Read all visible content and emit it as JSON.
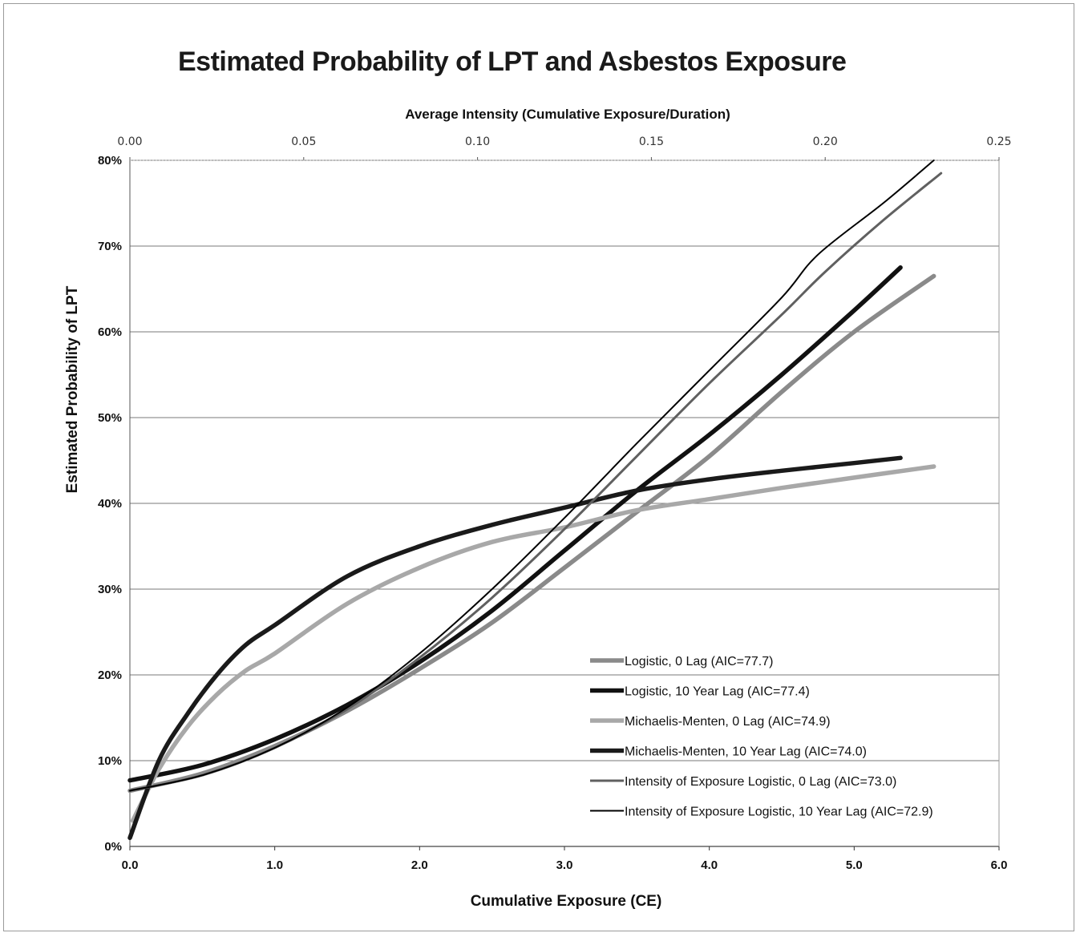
{
  "chart_data": {
    "type": "line",
    "title": "Estimated Probability of LPT and Asbestos Exposure",
    "xlabel": "Cumulative Exposure (CE)",
    "ylabel": "Estimated Probability of LPT",
    "x2label": "Average Intensity (Cumulative Exposure/Duration)",
    "xlim": [
      0,
      6
    ],
    "ylim": [
      0,
      0.8
    ],
    "x2lim": [
      0,
      0.25
    ],
    "x_ticks": [
      "0.0",
      "1.0",
      "2.0",
      "3.0",
      "4.0",
      "5.0",
      "6.0"
    ],
    "y_ticks": [
      "0%",
      "10%",
      "20%",
      "30%",
      "40%",
      "50%",
      "60%",
      "70%",
      "80%"
    ],
    "x2_ticks": [
      "0.00",
      "0.05",
      "0.10",
      "0.15",
      "0.20",
      "0.25"
    ],
    "grid": "horizontal",
    "legend_position": "bottom-right",
    "series": [
      {
        "name": "Logistic, 0 Lag (AIC=77.7)",
        "color": "#8a8a8a",
        "style": "thick-gray",
        "x": [
          0.0,
          0.5,
          1.0,
          1.5,
          2.0,
          2.5,
          3.0,
          3.5,
          4.0,
          4.5,
          5.0,
          5.55
        ],
        "y": [
          0.065,
          0.085,
          0.117,
          0.158,
          0.207,
          0.261,
          0.325,
          0.39,
          0.455,
          0.53,
          0.6,
          0.665
        ]
      },
      {
        "name": "Logistic, 10 Year Lag (AIC=77.4)",
        "color": "#111111",
        "style": "thick-black",
        "x": [
          0.0,
          0.5,
          1.0,
          1.5,
          2.0,
          2.5,
          3.0,
          3.5,
          4.0,
          4.5,
          5.0,
          5.32
        ],
        "y": [
          0.077,
          0.095,
          0.125,
          0.165,
          0.215,
          0.275,
          0.345,
          0.415,
          0.48,
          0.55,
          0.625,
          0.675
        ]
      },
      {
        "name": "Michaelis-Menten, 0 Lag (AIC=74.9)",
        "color": "#a8a8a8",
        "style": "thick-lightgray",
        "x": [
          0.02,
          0.2,
          0.4,
          0.6,
          0.8,
          1.0,
          1.5,
          2.0,
          2.5,
          3.0,
          3.5,
          4.0,
          4.5,
          5.0,
          5.55
        ],
        "y": [
          0.03,
          0.09,
          0.14,
          0.177,
          0.205,
          0.225,
          0.283,
          0.325,
          0.355,
          0.372,
          0.392,
          0.405,
          0.418,
          0.43,
          0.443
        ]
      },
      {
        "name": "Michaelis-Menten, 10 Year Lag (AIC=74.0)",
        "color": "#1a1a1a",
        "style": "thick-black",
        "x": [
          0.0,
          0.2,
          0.4,
          0.6,
          0.8,
          1.0,
          1.5,
          2.0,
          2.5,
          3.0,
          3.5,
          4.0,
          4.5,
          5.0,
          5.32
        ],
        "y": [
          0.01,
          0.1,
          0.155,
          0.2,
          0.235,
          0.258,
          0.315,
          0.35,
          0.375,
          0.395,
          0.415,
          0.428,
          0.438,
          0.447,
          0.453
        ]
      },
      {
        "name": "Intensity of Exposure Logistic, 0 Lag (AIC=73.0)",
        "color": "#606060",
        "style": "thin-gray",
        "x": [
          0.0,
          0.5,
          1.0,
          1.5,
          2.0,
          2.5,
          3.0,
          3.5,
          4.0,
          4.5,
          4.8,
          5.2,
          5.6
        ],
        "y": [
          0.065,
          0.083,
          0.115,
          0.16,
          0.22,
          0.29,
          0.37,
          0.455,
          0.54,
          0.62,
          0.67,
          0.73,
          0.785
        ]
      },
      {
        "name": "Intensity of Exposure Logistic, 10 Year Lag (AIC=72.9)",
        "color": "#000000",
        "style": "thin-black",
        "x": [
          0.0,
          0.5,
          1.0,
          1.5,
          2.0,
          2.5,
          3.0,
          3.5,
          4.0,
          4.5,
          4.75,
          5.2,
          5.55
        ],
        "y": [
          0.065,
          0.083,
          0.115,
          0.162,
          0.225,
          0.3,
          0.383,
          0.47,
          0.555,
          0.64,
          0.69,
          0.75,
          0.8
        ]
      }
    ]
  }
}
